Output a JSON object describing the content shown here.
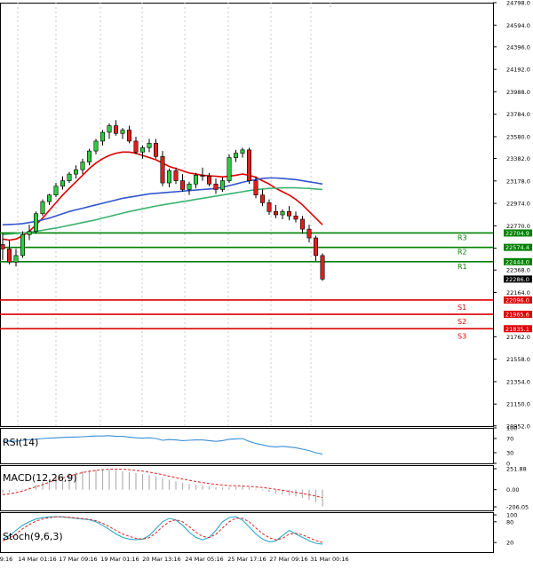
{
  "chart_data": {
    "type": "candlestick",
    "title": "",
    "price_axis": {
      "min": 20950.0,
      "max": 24798.0,
      "ticks": [
        "24798.0",
        "24594.0",
        "24396.0",
        "24192.0",
        "23988.0",
        "23784.0",
        "23580.0",
        "23382.0",
        "23178.0",
        "22974.0",
        "22770.0",
        "22566.0",
        "22368.0",
        "22164.0",
        "21762.0",
        "21558.0",
        "21354.0",
        "21150.0",
        "20952.0"
      ]
    },
    "time_labels": [
      "9:16",
      "14 Mar 01:16",
      "17 Mar 09:16",
      "19 Mar 01:16",
      "20 Mar 13:16",
      "24 Mar 05:16",
      "25 Mar 17:16",
      "27 Mar 09:16",
      "31 Mar 00:16"
    ],
    "levels": [
      {
        "name": "R3",
        "value": 22704.9,
        "label": "22704.9",
        "color": "#008000"
      },
      {
        "name": "R2",
        "value": 22574.4,
        "label": "22574.4",
        "color": "#008000"
      },
      {
        "name": "R1",
        "value": 22444.0,
        "label": "22444.0",
        "color": "#008000"
      },
      {
        "name": "S1",
        "value": 22096.0,
        "label": "22096.0",
        "color": "#dd0000"
      },
      {
        "name": "S2",
        "value": 21965.6,
        "label": "21965.6",
        "color": "#dd0000"
      },
      {
        "name": "S3",
        "value": 21835.1,
        "label": "21835.1",
        "color": "#dd0000"
      }
    ],
    "last_price": {
      "value": 22286.0,
      "label": "22286.0"
    },
    "candles": [
      [
        22600,
        22700,
        22460,
        22560
      ],
      [
        22560,
        22640,
        22420,
        22440
      ],
      [
        22440,
        22560,
        22400,
        22500
      ],
      [
        22500,
        22720,
        22480,
        22690
      ],
      [
        22690,
        22780,
        22640,
        22720
      ],
      [
        22720,
        22900,
        22700,
        22880
      ],
      [
        22880,
        23010,
        22860,
        22990
      ],
      [
        22990,
        23060,
        22960,
        23050
      ],
      [
        23050,
        23160,
        23030,
        23130
      ],
      [
        23130,
        23220,
        23100,
        23180
      ],
      [
        23180,
        23260,
        23160,
        23240
      ],
      [
        23240,
        23320,
        23200,
        23280
      ],
      [
        23280,
        23380,
        23240,
        23350
      ],
      [
        23350,
        23470,
        23320,
        23450
      ],
      [
        23450,
        23560,
        23420,
        23540
      ],
      [
        23540,
        23640,
        23500,
        23620
      ],
      [
        23620,
        23700,
        23560,
        23680
      ],
      [
        23680,
        23730,
        23590,
        23610
      ],
      [
        23610,
        23660,
        23560,
        23640
      ],
      [
        23640,
        23680,
        23520,
        23540
      ],
      [
        23540,
        23580,
        23420,
        23440
      ],
      [
        23440,
        23500,
        23380,
        23480
      ],
      [
        23480,
        23560,
        23440,
        23520
      ],
      [
        23520,
        23560,
        23380,
        23400
      ],
      [
        23400,
        23450,
        23130,
        23160
      ],
      [
        23160,
        23290,
        23120,
        23270
      ],
      [
        23270,
        23300,
        23150,
        23180
      ],
      [
        23180,
        23240,
        23080,
        23100
      ],
      [
        23100,
        23170,
        23050,
        23150
      ],
      [
        23150,
        23250,
        23110,
        23230
      ],
      [
        23230,
        23300,
        23180,
        23220
      ],
      [
        23220,
        23250,
        23130,
        23150
      ],
      [
        23150,
        23200,
        23060,
        23100
      ],
      [
        23100,
        23210,
        23080,
        23180
      ],
      [
        23180,
        23420,
        23160,
        23390
      ],
      [
        23390,
        23460,
        23350,
        23430
      ],
      [
        23430,
        23480,
        23390,
        23460
      ],
      [
        23460,
        23480,
        23150,
        23180
      ],
      [
        23180,
        23220,
        23020,
        23050
      ],
      [
        23050,
        23100,
        22950,
        22980
      ],
      [
        22980,
        23010,
        22870,
        22900
      ],
      [
        22900,
        22960,
        22840,
        22870
      ],
      [
        22870,
        22920,
        22830,
        22900
      ],
      [
        22900,
        22950,
        22820,
        22860
      ],
      [
        22860,
        22900,
        22800,
        22830
      ],
      [
        22830,
        22860,
        22700,
        22740
      ],
      [
        22740,
        22780,
        22620,
        22660
      ],
      [
        22660,
        22680,
        22450,
        22500
      ],
      [
        22500,
        22520,
        22270,
        22286
      ]
    ],
    "moving_averages": [
      {
        "name": "MA fast",
        "color": "#e00000",
        "values": [
          22650,
          22640,
          22650,
          22680,
          22720,
          22780,
          22840,
          22910,
          22980,
          23050,
          23110,
          23170,
          23230,
          23290,
          23340,
          23380,
          23410,
          23430,
          23440,
          23440,
          23430,
          23410,
          23390,
          23370,
          23340,
          23310,
          23290,
          23270,
          23250,
          23240,
          23230,
          23225,
          23220,
          23215,
          23220,
          23230,
          23240,
          23230,
          23210,
          23180,
          23150,
          23110,
          23080,
          23050,
          23010,
          22960,
          22900,
          22840,
          22780
        ]
      },
      {
        "name": "MA medium",
        "color": "#3355cc",
        "values": [
          22780,
          22782,
          22785,
          22790,
          22800,
          22810,
          22825,
          22840,
          22860,
          22880,
          22900,
          22915,
          22930,
          22945,
          22960,
          22975,
          22990,
          23005,
          23020,
          23030,
          23040,
          23050,
          23060,
          23065,
          23070,
          23075,
          23080,
          23085,
          23090,
          23095,
          23100,
          23105,
          23110,
          23120,
          23135,
          23150,
          23165,
          23180,
          23190,
          23200,
          23205,
          23205,
          23200,
          23195,
          23190,
          23180,
          23170,
          23160,
          23150
        ]
      },
      {
        "name": "MA slow",
        "color": "#3cb371",
        "values": [
          22690,
          22695,
          22700,
          22705,
          22710,
          22720,
          22730,
          22740,
          22750,
          22762,
          22775,
          22787,
          22800,
          22812,
          22825,
          22840,
          22855,
          22870,
          22885,
          22900,
          22912,
          22925,
          22937,
          22950,
          22960,
          22970,
          22980,
          22990,
          23000,
          23010,
          23020,
          23030,
          23040,
          23050,
          23060,
          23070,
          23080,
          23090,
          23100,
          23105,
          23110,
          23112,
          23115,
          23115,
          23115,
          23112,
          23110,
          23105,
          23100
        ]
      }
    ],
    "rsi": {
      "label": "RSI(14)",
      "ticks": [
        "100",
        "70",
        "30",
        "0"
      ],
      "values": [
        62,
        63,
        62,
        65,
        67,
        68,
        70,
        71,
        72,
        73,
        74,
        74,
        75,
        76,
        77,
        77,
        78,
        76,
        76,
        74,
        72,
        71,
        72,
        70,
        65,
        67,
        66,
        64,
        65,
        66,
        66,
        64,
        62,
        64,
        68,
        69,
        70,
        62,
        56,
        52,
        48,
        46,
        48,
        46,
        44,
        40,
        36,
        30,
        26
      ]
    },
    "macd": {
      "label": "MACD(12,26,9)",
      "ticks": [
        "251.88",
        "0.00",
        "-206.05"
      ],
      "hist": [
        -40,
        -30,
        -10,
        10,
        30,
        60,
        90,
        120,
        150,
        175,
        195,
        210,
        225,
        235,
        240,
        242,
        240,
        232,
        222,
        212,
        200,
        188,
        175,
        160,
        140,
        120,
        100,
        82,
        68,
        56,
        48,
        40,
        32,
        28,
        32,
        38,
        40,
        30,
        10,
        -10,
        -30,
        -50,
        -60,
        -70,
        -80,
        -100,
        -120,
        -150,
        -200
      ],
      "signal": [
        -60,
        -50,
        -35,
        -15,
        10,
        35,
        60,
        90,
        115,
        140,
        165,
        185,
        205,
        220,
        232,
        240,
        245,
        247,
        245,
        240,
        232,
        222,
        210,
        196,
        180,
        162,
        145,
        128,
        112,
        98,
        86,
        74,
        64,
        56,
        50,
        46,
        44,
        40,
        34,
        26,
        16,
        4,
        -8,
        -20,
        -32,
        -46,
        -60,
        -76,
        -96
      ]
    },
    "stoch": {
      "label": "Stoch(9,6,3)",
      "ticks": [
        "100",
        "80",
        "20"
      ],
      "k": [
        30,
        40,
        55,
        70,
        80,
        88,
        92,
        94,
        95,
        94,
        92,
        90,
        88,
        86,
        80,
        70,
        58,
        45,
        35,
        30,
        28,
        30,
        40,
        60,
        80,
        90,
        85,
        70,
        50,
        35,
        28,
        35,
        55,
        80,
        92,
        95,
        85,
        65,
        45,
        30,
        22,
        25,
        40,
        55,
        45,
        35,
        25,
        18,
        15
      ],
      "d": [
        25,
        32,
        45,
        60,
        72,
        82,
        88,
        92,
        94,
        94,
        93,
        91,
        89,
        87,
        83,
        76,
        66,
        55,
        45,
        38,
        32,
        30,
        34,
        48,
        66,
        80,
        86,
        80,
        66,
        50,
        38,
        34,
        44,
        62,
        80,
        90,
        90,
        80,
        62,
        46,
        34,
        28,
        32,
        44,
        47,
        42,
        34,
        26,
        20
      ]
    }
  }
}
